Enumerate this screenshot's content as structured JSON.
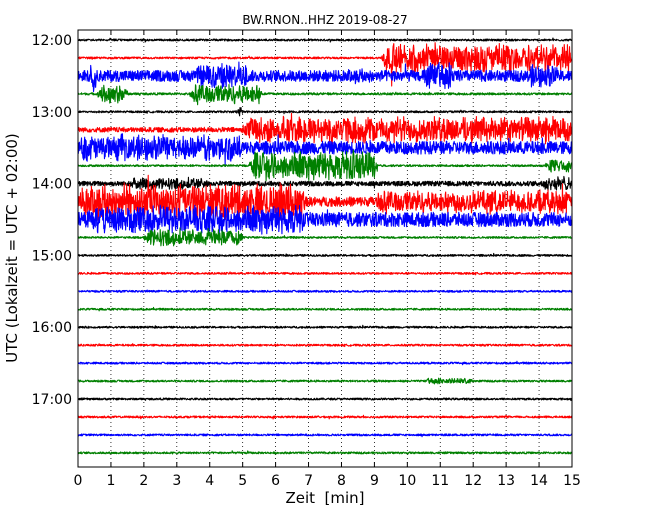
{
  "chart_data": {
    "type": "line",
    "title": "BW.RNON..HHZ 2019-08-27",
    "xlabel": "Zeit  [min]",
    "ylabel": "UTC (Lokalzeit = UTC + 02:00)",
    "xlim": [
      0,
      15
    ],
    "x_ticks": [
      "0",
      "1",
      "2",
      "3",
      "4",
      "5",
      "6",
      "7",
      "8",
      "9",
      "10",
      "11",
      "12",
      "13",
      "14",
      "15"
    ],
    "y_ticks": [
      "12:00",
      "13:00",
      "14:00",
      "15:00",
      "16:00",
      "17:00"
    ],
    "grid": "vertical dotted",
    "trace_colors": [
      "#000000",
      "#ff0000",
      "#0000ff",
      "#008000"
    ],
    "traces": [
      {
        "start": "12:00",
        "color": "#000000",
        "amplitude": 0.06,
        "events": []
      },
      {
        "start": "12:15",
        "color": "#ff0000",
        "amplitude": 0.06,
        "events": [
          {
            "from": 9.2,
            "to": 15,
            "amplitude": 1.0
          }
        ]
      },
      {
        "start": "12:30",
        "color": "#0000ff",
        "amplitude": 0.35,
        "events": [
          {
            "from": 0.3,
            "to": 0.6,
            "amplitude": 1.2
          },
          {
            "from": 3.5,
            "to": 5.2,
            "amplitude": 0.9
          },
          {
            "from": 8.0,
            "to": 9.0,
            "amplitude": 0.5
          },
          {
            "from": 10.4,
            "to": 11.4,
            "amplitude": 0.9
          },
          {
            "from": 13.6,
            "to": 14.6,
            "amplitude": 0.8
          }
        ]
      },
      {
        "start": "12:45",
        "color": "#008000",
        "amplitude": 0.07,
        "events": [
          {
            "from": 0.6,
            "to": 1.5,
            "amplitude": 0.6
          },
          {
            "from": 3.4,
            "to": 5.6,
            "amplitude": 0.7
          }
        ]
      },
      {
        "start": "13:00",
        "color": "#000000",
        "amplitude": 0.06,
        "events": [
          {
            "from": 4.8,
            "to": 5.0,
            "amplitude": 0.5
          }
        ]
      },
      {
        "start": "13:15",
        "color": "#ff0000",
        "amplitude": 0.15,
        "events": [
          {
            "from": 5.0,
            "to": 15,
            "amplitude": 0.9
          }
        ]
      },
      {
        "start": "13:30",
        "color": "#0000ff",
        "amplitude": 0.4,
        "events": [
          {
            "from": 0,
            "to": 5.0,
            "amplitude": 0.9
          }
        ]
      },
      {
        "start": "13:45",
        "color": "#008000",
        "amplitude": 0.06,
        "events": [
          {
            "from": 5.2,
            "to": 9.1,
            "amplitude": 1.0
          },
          {
            "from": 14.2,
            "to": 15,
            "amplitude": 0.5
          }
        ]
      },
      {
        "start": "14:00",
        "color": "#000000",
        "amplitude": 0.15,
        "events": [
          {
            "from": 1.5,
            "to": 4.0,
            "amplitude": 0.4
          },
          {
            "from": 14.0,
            "to": 15,
            "amplitude": 0.5
          }
        ]
      },
      {
        "start": "14:15",
        "color": "#ff0000",
        "amplitude": 0.3,
        "events": [
          {
            "from": 0,
            "to": 6.9,
            "amplitude": 1.2
          },
          {
            "from": 9.0,
            "to": 15,
            "amplitude": 0.8
          }
        ]
      },
      {
        "start": "14:30",
        "color": "#0000ff",
        "amplitude": 0.45,
        "events": [
          {
            "from": 0,
            "to": 6.9,
            "amplitude": 1.0
          }
        ]
      },
      {
        "start": "14:45",
        "color": "#008000",
        "amplitude": 0.06,
        "events": [
          {
            "from": 2.0,
            "to": 5.0,
            "amplitude": 0.6
          }
        ]
      },
      {
        "start": "15:00",
        "color": "#000000",
        "amplitude": 0.06,
        "events": []
      },
      {
        "start": "15:15",
        "color": "#ff0000",
        "amplitude": 0.06,
        "events": []
      },
      {
        "start": "15:30",
        "color": "#0000ff",
        "amplitude": 0.06,
        "events": []
      },
      {
        "start": "15:45",
        "color": "#008000",
        "amplitude": 0.06,
        "events": []
      },
      {
        "start": "16:00",
        "color": "#000000",
        "amplitude": 0.06,
        "events": []
      },
      {
        "start": "16:15",
        "color": "#ff0000",
        "amplitude": 0.06,
        "events": []
      },
      {
        "start": "16:30",
        "color": "#0000ff",
        "amplitude": 0.06,
        "events": []
      },
      {
        "start": "16:45",
        "color": "#008000",
        "amplitude": 0.06,
        "events": [
          {
            "from": 10.5,
            "to": 12.0,
            "amplitude": 0.2
          }
        ]
      },
      {
        "start": "17:00",
        "color": "#000000",
        "amplitude": 0.06,
        "events": []
      },
      {
        "start": "17:15",
        "color": "#ff0000",
        "amplitude": 0.06,
        "events": []
      },
      {
        "start": "17:30",
        "color": "#0000ff",
        "amplitude": 0.06,
        "events": []
      },
      {
        "start": "17:45",
        "color": "#008000",
        "amplitude": 0.06,
        "events": []
      }
    ]
  }
}
